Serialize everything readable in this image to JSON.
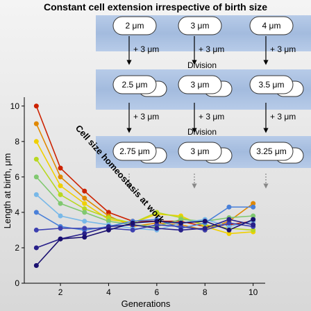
{
  "title": "Constant cell extension irrespective of birth size",
  "diagram": {
    "rows": [
      {
        "cells": [
          "2 μm",
          "3 μm",
          "4 μm"
        ]
      },
      {
        "cells": [
          "2.5 μm",
          "3 μm",
          "3.5 μm"
        ]
      },
      {
        "cells": [
          "2.75 μm",
          "3 μm",
          "3.25 μm"
        ]
      }
    ],
    "increment_label": "+ 3 μm",
    "division_label": "Division",
    "band_color": "#9fb8dc",
    "cell_color": "#ffffff"
  },
  "annotation": "Cell size homeostasis at work",
  "chart_data": {
    "type": "line",
    "xlabel": "Generations",
    "ylabel": "Length at birth, μm",
    "xlim": [
      0.5,
      10.5
    ],
    "ylim": [
      0,
      10.5
    ],
    "xticks": [
      2,
      4,
      6,
      8,
      10
    ],
    "yticks": [
      0,
      2,
      4,
      6,
      8,
      10
    ],
    "x": [
      1,
      2,
      3,
      4,
      5,
      6,
      7,
      8,
      9,
      10
    ],
    "series": [
      {
        "color": "#cc2200",
        "values": [
          10,
          6.5,
          5.2,
          4.0,
          3.5,
          3.5,
          3.5,
          3.2,
          3.3,
          3.5
        ]
      },
      {
        "color": "#e08800",
        "values": [
          9,
          6.0,
          4.8,
          3.8,
          3.2,
          3.4,
          3.3,
          3.0,
          3.5,
          4.5
        ]
      },
      {
        "color": "#f0d000",
        "values": [
          8,
          5.5,
          4.5,
          3.6,
          3.4,
          3.9,
          3.8,
          3.2,
          2.8,
          2.9
        ]
      },
      {
        "color": "#b8d820",
        "values": [
          7,
          5.0,
          4.2,
          3.7,
          3.4,
          4.0,
          3.7,
          3.3,
          3.1,
          3.0
        ]
      },
      {
        "color": "#80c870",
        "values": [
          6,
          4.5,
          4.0,
          3.5,
          3.3,
          3.2,
          3.6,
          3.5,
          3.7,
          3.8
        ]
      },
      {
        "color": "#78b8e8",
        "values": [
          5,
          3.8,
          3.5,
          3.3,
          3.1,
          3.0,
          3.4,
          3.6,
          3.2,
          3.5
        ]
      },
      {
        "color": "#4a80d8",
        "values": [
          4,
          3.2,
          3.0,
          3.2,
          3.5,
          3.6,
          3.1,
          3.4,
          4.3,
          4.3
        ]
      },
      {
        "color": "#3d40b0",
        "values": [
          3,
          3.1,
          3.1,
          3.1,
          3.0,
          3.3,
          3.2,
          3.0,
          3.4,
          3.2
        ]
      },
      {
        "color": "#28208a",
        "values": [
          2,
          2.5,
          2.8,
          3.2,
          3.3,
          3.1,
          3.0,
          3.1,
          3.6,
          3.3
        ]
      },
      {
        "color": "#1a1070",
        "values": [
          1,
          2.5,
          2.6,
          3.0,
          3.4,
          3.5,
          3.4,
          3.5,
          3.0,
          3.6
        ]
      }
    ]
  }
}
